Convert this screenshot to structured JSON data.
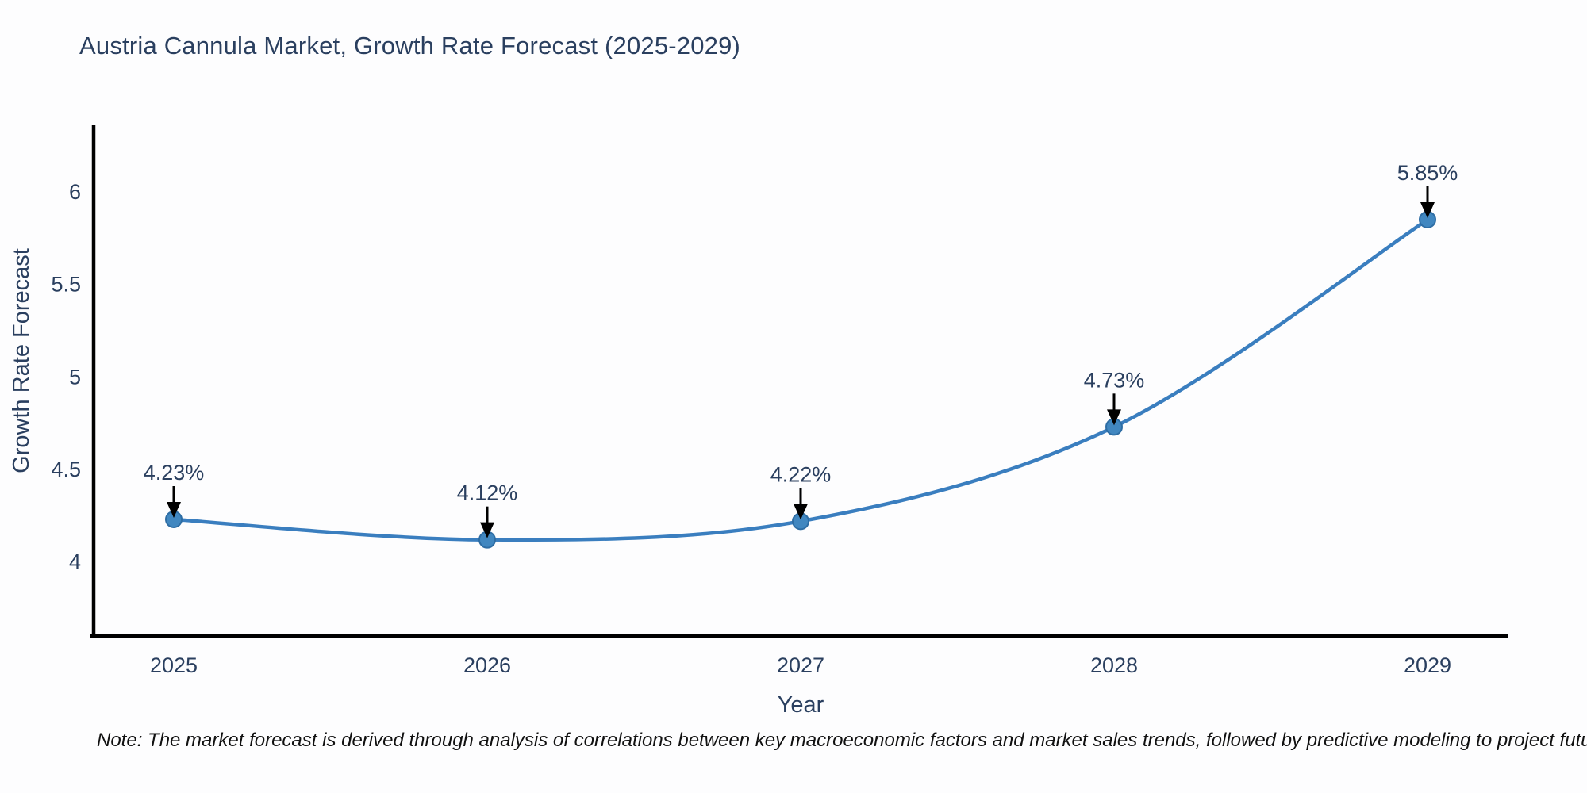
{
  "header": {
    "title": "Austria Cannula Market, Growth Rate Forecast (2025-2029)"
  },
  "footnote_text": "Note: The market forecast is derived through analysis of correlations between key macroeconomic factors and market sales trends, followed by predictive modeling to project future sales",
  "colors": {
    "title_text": "#2a3f5f",
    "tick_text": "#2a3f5f",
    "annotation_text": "#2a3f5f",
    "axis_line": "#000000",
    "arrow": "#000000",
    "line": "#3a7ebf",
    "marker_fill": "#4187c0",
    "marker_stroke": "#2e6da4",
    "note_text": "#111111",
    "background": "#fdfdfe"
  },
  "chart_data": {
    "type": "line",
    "title": "Austria Cannula Market, Growth Rate Forecast (2025-2029)",
    "x": [
      "2025",
      "2026",
      "2027",
      "2028",
      "2029"
    ],
    "values": [
      4.23,
      4.12,
      4.22,
      4.73,
      5.85
    ],
    "point_labels": [
      "4.23%",
      "4.12%",
      "4.22%",
      "4.73%",
      "5.85%"
    ],
    "series_name": "Growth Rate Forecast",
    "xlabel": "Year",
    "ylabel": "Growth Rate Forecast",
    "yticks": [
      4,
      4.5,
      5,
      5.5,
      6
    ],
    "ytick_labels": [
      "4",
      "4.5",
      "5",
      "5.5",
      "6"
    ],
    "ylim": [
      3.6,
      6.36
    ],
    "grid": false,
    "legend_position": "none",
    "curve": "spline",
    "annotations_have_arrows": true
  }
}
